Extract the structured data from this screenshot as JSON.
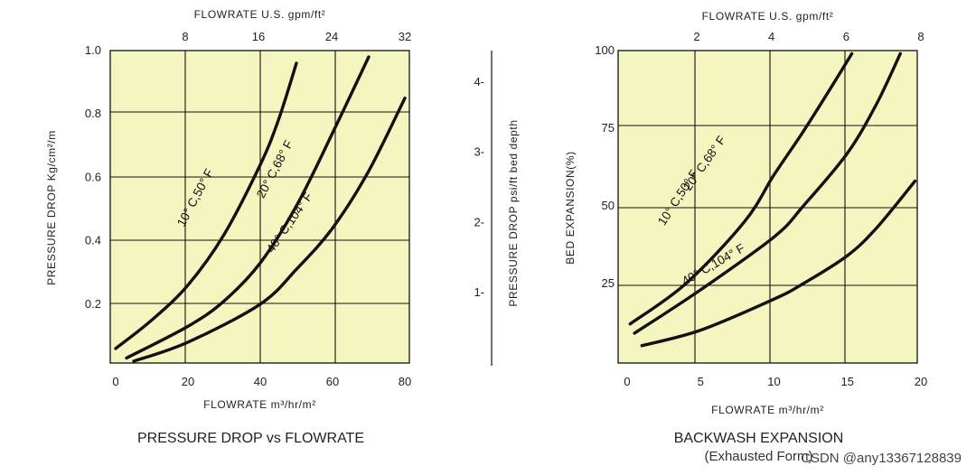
{
  "chart_data": [
    {
      "type": "line",
      "title": "PRESSURE DROP vs FLOWRATE",
      "xlabel": "FLOWRATE m³/hr/m²",
      "x2label": "FLOWRATE U.S. gpm/ft²",
      "ylabel": "PRESSURE DROP Kg/cm²/m",
      "y2label": "PRESSURE DROP psi/ft bed depth",
      "xlim": [
        0,
        80
      ],
      "ylim": [
        0,
        1.0
      ],
      "y2lim": [
        0,
        4.5
      ],
      "x_ticks": [
        "0",
        "20",
        "40",
        "60",
        "80"
      ],
      "x_tick_values": [
        0,
        20,
        40,
        60,
        80
      ],
      "x2_ticks": [
        "8",
        "16",
        "24",
        "32"
      ],
      "x2_tick_values": [
        8,
        16,
        24,
        32
      ],
      "y_ticks": [
        "0.2",
        "0.4",
        "0.6",
        "0.8",
        "1.0"
      ],
      "y_tick_values": [
        0.2,
        0.4,
        0.6,
        0.8,
        1.0
      ],
      "y2_ticks": [
        "1-",
        "2-",
        "3-",
        "4-"
      ],
      "y2_tick_values": [
        1,
        2,
        3,
        4
      ],
      "grid": true,
      "series": [
        {
          "name": "10° C,50° F",
          "x": [
            0,
            10,
            20,
            30,
            40,
            45,
            50
          ],
          "y": [
            0.06,
            0.15,
            0.26,
            0.42,
            0.64,
            0.78,
            0.96
          ]
        },
        {
          "name": "20° C,68° F",
          "x": [
            3,
            20,
            30,
            40,
            50,
            60,
            70
          ],
          "y": [
            0.03,
            0.13,
            0.21,
            0.33,
            0.51,
            0.74,
            0.98
          ]
        },
        {
          "name": "40° C,104° F",
          "x": [
            5,
            20,
            40,
            50,
            60,
            70,
            80
          ],
          "y": [
            0.02,
            0.08,
            0.2,
            0.31,
            0.44,
            0.62,
            0.85
          ]
        }
      ],
      "curve_labels": [
        {
          "series": 0,
          "text": "10° C,50° F",
          "x": 23,
          "y": 0.53,
          "angle": -62
        },
        {
          "series": 1,
          "text": "20° C,68° F",
          "x": 45,
          "y": 0.62,
          "angle": -62
        },
        {
          "series": 2,
          "text": "40° C,104° F",
          "x": 49,
          "y": 0.45,
          "angle": -55
        }
      ]
    },
    {
      "type": "line",
      "title": "BACKWASH EXPANSION",
      "subtitle": "(Exhausted Form)",
      "xlabel": "FLOWRATE m³/hr/m²",
      "x2label": "FLOWRATE U.S. gpm/ft²",
      "ylabel": "BED EXPANSION(%)",
      "xlim": [
        0,
        20
      ],
      "ylim": [
        0,
        100
      ],
      "x_ticks": [
        "0",
        "5",
        "10",
        "15",
        "20"
      ],
      "x_tick_values": [
        0,
        5,
        10,
        15,
        20
      ],
      "x2_ticks": [
        "2",
        "4",
        "6",
        "8"
      ],
      "x2_tick_values": [
        2,
        4,
        6,
        8
      ],
      "y_ticks": [
        "25",
        "50",
        "75",
        "100"
      ],
      "y_tick_values": [
        25,
        50,
        75,
        100
      ],
      "grid": true,
      "series": [
        {
          "name": "10° C,50° F",
          "x": [
            0.2,
            4,
            8,
            10,
            12,
            14,
            15.3
          ],
          "y": [
            12,
            25,
            45,
            60,
            74,
            89,
            99
          ]
        },
        {
          "name": "20° C,68° F",
          "x": [
            0.5,
            5,
            10,
            12,
            15,
            17,
            18.6
          ],
          "y": [
            9,
            23,
            40,
            50,
            67,
            83,
            99
          ]
        },
        {
          "name": "40° C,104° F",
          "x": [
            1,
            5,
            10,
            12,
            15,
            17,
            19.6
          ],
          "y": [
            5,
            10,
            20,
            25,
            34,
            43,
            58
          ]
        }
      ],
      "curve_labels": [
        {
          "series": 0,
          "text": "10° C,50° F",
          "x": 3.7,
          "y": 52,
          "angle": -57
        },
        {
          "series": 1,
          "text": "20° C,68° F",
          "x": 5.5,
          "y": 63,
          "angle": -55
        },
        {
          "series": 2,
          "text": "40° C,104° F",
          "x": 6.0,
          "y": 30,
          "angle": -30
        }
      ]
    }
  ],
  "watermark": "CSDN @any13367128839"
}
